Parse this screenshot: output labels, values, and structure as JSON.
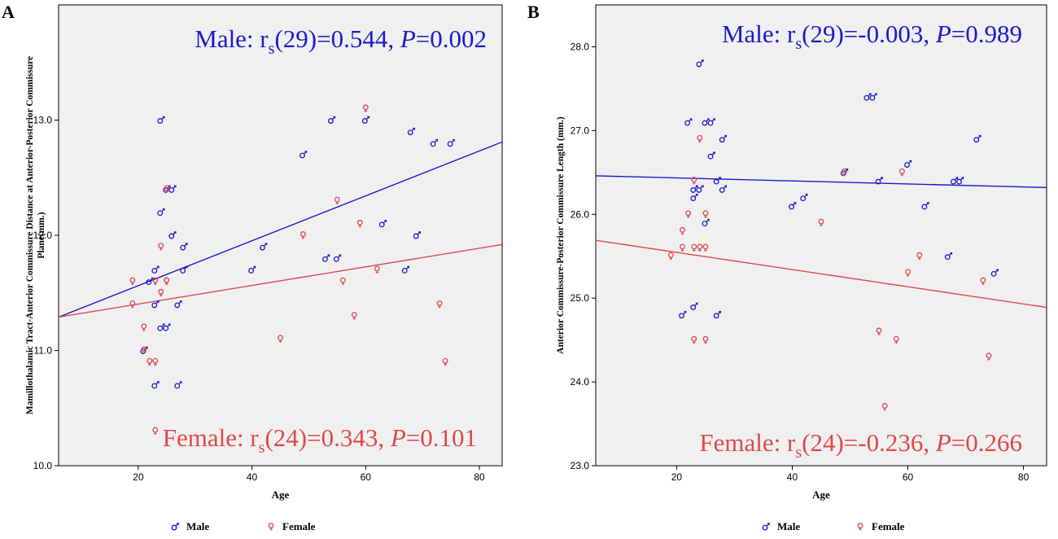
{
  "colors": {
    "male": "#1a1acc",
    "female": "#e04848",
    "panel_bg": "#f0f0f0",
    "axis": "#000000"
  },
  "legend": {
    "male_label": "Male",
    "female_label": "Female",
    "male_icon": "male-symbol-icon",
    "female_icon": "female-symbol-icon"
  },
  "chart_data": [
    {
      "type": "scatter",
      "panel_label": "A",
      "title": "",
      "xlabel": "Age",
      "ylabel": "Mamillothalamic Tract-Anterior Commissure Distance at Anterior-Posterior Commissure Plane(mm.)",
      "xlim": [
        6,
        84
      ],
      "ylim": [
        10.0,
        14.0
      ],
      "xticks": [
        20,
        40,
        60,
        80
      ],
      "yticks": [
        10.0,
        11.0,
        12.0,
        13.0
      ],
      "ytick_labels": [
        "10.0",
        "11.0",
        "12.0",
        "13.0"
      ],
      "annotations": {
        "male": {
          "prefix": "Male: r",
          "sub": "s",
          "mid": "(29)=0.544, ",
          "p": "P",
          "suffix": "=0.002"
        },
        "female": {
          "prefix": "Female: r",
          "sub": "s",
          "mid": "(24)=0.343, ",
          "p": "P",
          "suffix": "=0.101"
        }
      },
      "series": [
        {
          "name": "Male",
          "points": [
            [
              22,
              11.6
            ],
            [
              23,
              11.7
            ],
            [
              23,
              11.4
            ],
            [
              23,
              10.7
            ],
            [
              24,
              13.0
            ],
            [
              24,
              12.2
            ],
            [
              24,
              11.2
            ],
            [
              25,
              11.2
            ],
            [
              25,
              12.4
            ],
            [
              26,
              12.4
            ],
            [
              26,
              12.0
            ],
            [
              27,
              11.4
            ],
            [
              27,
              10.7
            ],
            [
              28,
              11.9
            ],
            [
              28,
              11.7
            ],
            [
              21,
              11.0
            ],
            [
              40,
              11.7
            ],
            [
              42,
              11.9
            ],
            [
              49,
              12.7
            ],
            [
              53,
              11.8
            ],
            [
              54,
              13.0
            ],
            [
              55,
              11.8
            ],
            [
              60,
              13.0
            ],
            [
              63,
              12.1
            ],
            [
              67,
              11.7
            ],
            [
              68,
              12.9
            ],
            [
              69,
              12.0
            ],
            [
              72,
              12.8
            ],
            [
              75,
              12.8
            ]
          ],
          "fit": [
            [
              6,
              11.29
            ],
            [
              84,
              12.81
            ]
          ]
        },
        {
          "name": "Female",
          "points": [
            [
              19,
              11.6
            ],
            [
              19,
              11.4
            ],
            [
              21,
              11.2
            ],
            [
              21,
              11.0
            ],
            [
              22,
              10.9
            ],
            [
              23,
              10.9
            ],
            [
              23,
              11.6
            ],
            [
              23,
              10.3
            ],
            [
              24,
              11.9
            ],
            [
              24,
              11.5
            ],
            [
              25,
              11.6
            ],
            [
              25,
              11.6
            ],
            [
              25,
              12.4
            ],
            [
              45,
              11.1
            ],
            [
              49,
              12.0
            ],
            [
              55,
              12.3
            ],
            [
              56,
              11.6
            ],
            [
              58,
              11.3
            ],
            [
              59,
              12.1
            ],
            [
              60,
              13.1
            ],
            [
              62,
              11.7
            ],
            [
              73,
              11.4
            ],
            [
              74,
              10.9
            ]
          ],
          "fit": [
            [
              6,
              11.29
            ],
            [
              84,
              11.92
            ]
          ]
        }
      ]
    },
    {
      "type": "scatter",
      "panel_label": "B",
      "title": "",
      "xlabel": "Age",
      "ylabel": "Anterior Commissure-Posterior Commissure Length (mm.)",
      "xlim": [
        6,
        84
      ],
      "ylim": [
        23.0,
        28.5
      ],
      "xticks": [
        20,
        40,
        60,
        80
      ],
      "yticks": [
        23.0,
        24.0,
        25.0,
        26.0,
        27.0,
        28.0
      ],
      "ytick_labels": [
        "23.0",
        "24.0",
        "25.0",
        "26.0",
        "27.0",
        "28.0"
      ],
      "annotations": {
        "male": {
          "prefix": "Male: r",
          "sub": "s",
          "mid": "(29)=-0.003, ",
          "p": "P",
          "suffix": "=0.989"
        },
        "female": {
          "prefix": "Female: r",
          "sub": "s",
          "mid": "(24)=-0.236, ",
          "p": "P",
          "suffix": "=0.266"
        }
      },
      "series": [
        {
          "name": "Male",
          "points": [
            [
              21,
              24.8
            ],
            [
              22,
              27.1
            ],
            [
              23,
              26.3
            ],
            [
              23,
              26.2
            ],
            [
              23,
              24.9
            ],
            [
              24,
              27.8
            ],
            [
              24,
              26.3
            ],
            [
              25,
              27.1
            ],
            [
              25,
              25.9
            ],
            [
              26,
              27.1
            ],
            [
              26,
              26.7
            ],
            [
              27,
              26.4
            ],
            [
              27,
              24.8
            ],
            [
              28,
              26.9
            ],
            [
              28,
              26.3
            ],
            [
              40,
              26.1
            ],
            [
              42,
              26.2
            ],
            [
              49,
              26.5
            ],
            [
              53,
              27.4
            ],
            [
              54,
              27.4
            ],
            [
              55,
              26.4
            ],
            [
              60,
              26.6
            ],
            [
              63,
              26.1
            ],
            [
              67,
              25.5
            ],
            [
              68,
              26.4
            ],
            [
              69,
              26.4
            ],
            [
              72,
              26.9
            ],
            [
              75,
              25.3
            ]
          ],
          "fit": [
            [
              6,
              26.46
            ],
            [
              84,
              26.32
            ]
          ]
        },
        {
          "name": "Female",
          "points": [
            [
              19,
              25.5
            ],
            [
              21,
              25.8
            ],
            [
              21,
              25.6
            ],
            [
              22,
              26.0
            ],
            [
              23,
              26.4
            ],
            [
              23,
              25.6
            ],
            [
              23,
              24.5
            ],
            [
              24,
              26.9
            ],
            [
              24,
              25.6
            ],
            [
              25,
              26.0
            ],
            [
              25,
              25.6
            ],
            [
              25,
              24.5
            ],
            [
              45,
              25.9
            ],
            [
              49,
              26.5
            ],
            [
              55,
              24.6
            ],
            [
              56,
              23.7
            ],
            [
              58,
              24.5
            ],
            [
              59,
              26.5
            ],
            [
              60,
              25.3
            ],
            [
              62,
              25.5
            ],
            [
              73,
              25.2
            ],
            [
              74,
              24.3
            ]
          ],
          "fit": [
            [
              6,
              25.69
            ],
            [
              84,
              24.89
            ]
          ]
        }
      ]
    }
  ]
}
